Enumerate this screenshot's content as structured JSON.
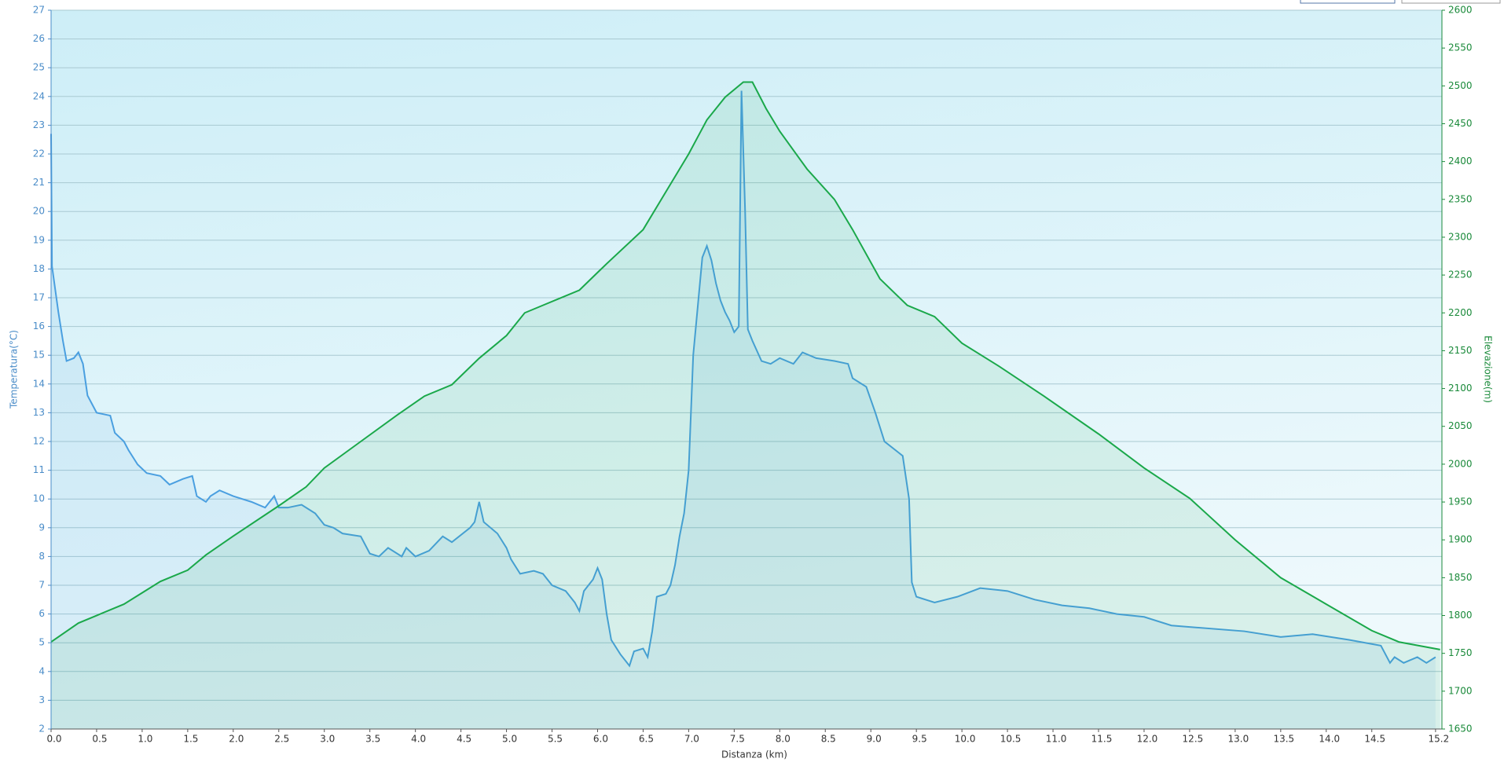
{
  "chart_data": {
    "type": "line",
    "xlabel": "Distanza  (km)",
    "ylabel": "Temperatura(°C)",
    "y2label": "Elevazione(m)",
    "xlim": [
      0,
      15.27
    ],
    "xticks": [
      {
        "value": 0,
        "label": "0.0"
      },
      0.5,
      {
        "value": 1,
        "label": "1.0"
      },
      1.5,
      {
        "value": 2,
        "label": "2.0"
      },
      2.5,
      {
        "value": 3,
        "label": "3.0"
      },
      3.5,
      {
        "value": 4,
        "label": "4.0"
      },
      4.5,
      {
        "value": 5,
        "label": "5.0"
      },
      5.5,
      {
        "value": 6,
        "label": "6.0"
      },
      6.5,
      {
        "value": 7,
        "label": "7.0"
      },
      7.5,
      {
        "value": 8,
        "label": "8.0"
      },
      8.5,
      {
        "value": 9,
        "label": "9.0"
      },
      9.5,
      {
        "value": 10,
        "label": "10.0"
      },
      10.5,
      {
        "value": 11,
        "label": "11.0"
      },
      11.5,
      {
        "value": 12,
        "label": "12.0"
      },
      12.5,
      {
        "value": 13,
        "label": "13.0"
      },
      13.5,
      {
        "value": 14,
        "label": "14.0"
      },
      14.5,
      15.2
    ],
    "ylim": [
      2,
      27
    ],
    "yticks": [
      2,
      3,
      4,
      5,
      6,
      7,
      8,
      9,
      10,
      11,
      12,
      13,
      14,
      15,
      16,
      17,
      18,
      19,
      20,
      21,
      22,
      23,
      24,
      25,
      26,
      27
    ],
    "y2lim": [
      1650,
      2600
    ],
    "y2ticks": [
      1650,
      1700,
      1750,
      1800,
      1850,
      1900,
      1950,
      2000,
      2050,
      2100,
      2150,
      2200,
      2250,
      2300,
      2350,
      2400,
      2450,
      2500,
      2550,
      2600
    ],
    "grid": true,
    "series": [
      {
        "color": "#4a9fe0",
        "axis": "y",
        "x": [
          0,
          0.01,
          0.08,
          0.13,
          0.17,
          0.25,
          0.3,
          0.35,
          0.4,
          0.5,
          0.65,
          0.7,
          0.8,
          0.85,
          0.95,
          1.05,
          1.2,
          1.3,
          1.45,
          1.55,
          1.6,
          1.7,
          1.75,
          1.85,
          2.0,
          2.2,
          2.35,
          2.45,
          2.5,
          2.6,
          2.75,
          2.9,
          3.0,
          3.1,
          3.2,
          3.4,
          3.5,
          3.6,
          3.7,
          3.85,
          3.9,
          4.0,
          4.15,
          4.3,
          4.4,
          4.6,
          4.65,
          4.7,
          4.75,
          4.9,
          5.0,
          5.05,
          5.15,
          5.3,
          5.4,
          5.5,
          5.65,
          5.75,
          5.8,
          5.85,
          5.95,
          6.0,
          6.05,
          6.1,
          6.15,
          6.25,
          6.35,
          6.4,
          6.5,
          6.55,
          6.6,
          6.65,
          6.75,
          6.8,
          6.85,
          6.9,
          6.95,
          7.0,
          7.03,
          7.05,
          7.1,
          7.15,
          7.2,
          7.25,
          7.3,
          7.35,
          7.4,
          7.45,
          7.5,
          7.55,
          7.58,
          7.62,
          7.65,
          7.7,
          7.8,
          7.9,
          8.0,
          8.15,
          8.25,
          8.4,
          8.6,
          8.75,
          8.8,
          8.95,
          9.05,
          9.15,
          9.35,
          9.42,
          9.45,
          9.5,
          9.7,
          9.95,
          10.2,
          10.5,
          10.8,
          11.1,
          11.4,
          11.7,
          12.0,
          12.3,
          13.1,
          13.5,
          13.85,
          14.25,
          14.6,
          14.7,
          14.75,
          14.85,
          15.0,
          15.1,
          15.2
        ],
        "values": [
          22.7,
          18.1,
          16.5,
          15.5,
          14.8,
          14.9,
          15.1,
          14.7,
          13.6,
          13.0,
          12.9,
          12.3,
          12.0,
          11.7,
          11.2,
          10.9,
          10.8,
          10.5,
          10.7,
          10.8,
          10.1,
          9.9,
          10.1,
          10.3,
          10.1,
          9.9,
          9.7,
          10.1,
          9.7,
          9.7,
          9.8,
          9.5,
          9.1,
          9.0,
          8.8,
          8.7,
          8.1,
          8.0,
          8.3,
          8.0,
          8.3,
          8.0,
          8.2,
          8.7,
          8.5,
          9.0,
          9.2,
          9.9,
          9.2,
          8.8,
          8.3,
          7.9,
          7.4,
          7.5,
          7.4,
          7.0,
          6.8,
          6.4,
          6.1,
          6.8,
          7.2,
          7.6,
          7.2,
          6.0,
          5.1,
          4.6,
          4.2,
          4.7,
          4.8,
          4.5,
          5.4,
          6.6,
          6.7,
          7.0,
          7.7,
          8.7,
          9.5,
          11.0,
          13.4,
          15.0,
          16.7,
          18.4,
          18.8,
          18.3,
          17.5,
          16.9,
          16.5,
          16.2,
          15.8,
          16.0,
          24.2,
          20.0,
          15.9,
          15.5,
          14.8,
          14.7,
          14.9,
          14.7,
          15.1,
          14.9,
          14.8,
          14.7,
          14.2,
          13.9,
          13.0,
          12.0,
          11.5,
          10.0,
          7.1,
          6.6,
          6.4,
          6.6,
          6.9,
          6.8,
          6.5,
          6.3,
          6.2,
          6.0,
          5.9,
          5.6,
          5.4,
          5.2,
          5.3,
          5.1,
          4.9,
          4.3,
          4.5,
          4.3,
          4.5,
          4.3,
          4.5
        ]
      },
      {
        "color": "#1aa84a",
        "axis": "y2",
        "x": [
          0,
          0.3,
          0.5,
          0.8,
          1.0,
          1.2,
          1.5,
          1.7,
          2.0,
          2.5,
          2.8,
          3.0,
          3.4,
          3.8,
          4.1,
          4.4,
          4.7,
          5.0,
          5.2,
          5.4,
          5.8,
          6.1,
          6.5,
          6.7,
          7.0,
          7.2,
          7.4,
          7.6,
          7.7,
          7.85,
          8.0,
          8.3,
          8.6,
          8.8,
          9.1,
          9.4,
          9.7,
          10.0,
          10.4,
          10.9,
          11.5,
          12.0,
          12.5,
          13.0,
          13.5,
          14.0,
          14.5,
          14.8,
          15.25
        ],
        "values": [
          1765,
          1790,
          1800,
          1815,
          1830,
          1845,
          1860,
          1880,
          1905,
          1945,
          1970,
          1995,
          2030,
          2065,
          2090,
          2105,
          2140,
          2170,
          2200,
          2210,
          2230,
          2265,
          2310,
          2350,
          2410,
          2455,
          2485,
          2505,
          2505,
          2470,
          2440,
          2390,
          2350,
          2310,
          2245,
          2210,
          2195,
          2160,
          2130,
          2090,
          2040,
          1995,
          1955,
          1900,
          1850,
          1815,
          1780,
          1765,
          1755
        ]
      }
    ]
  }
}
